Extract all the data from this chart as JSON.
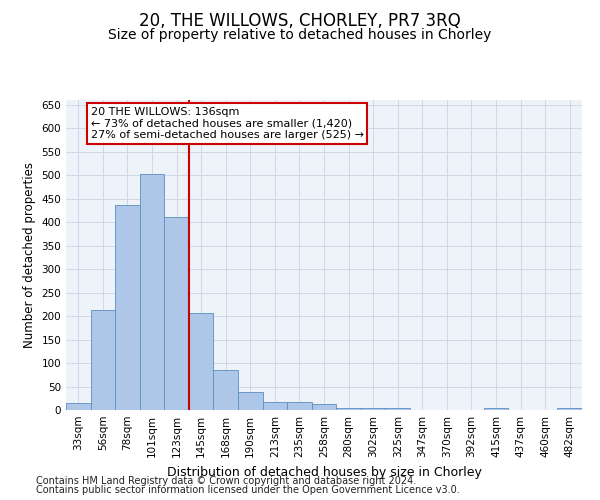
{
  "title1": "20, THE WILLOWS, CHORLEY, PR7 3RQ",
  "title2": "Size of property relative to detached houses in Chorley",
  "xlabel": "Distribution of detached houses by size in Chorley",
  "ylabel": "Number of detached properties",
  "bin_labels": [
    "33sqm",
    "56sqm",
    "78sqm",
    "101sqm",
    "123sqm",
    "145sqm",
    "168sqm",
    "190sqm",
    "213sqm",
    "235sqm",
    "258sqm",
    "280sqm",
    "302sqm",
    "325sqm",
    "347sqm",
    "370sqm",
    "392sqm",
    "415sqm",
    "437sqm",
    "460sqm",
    "482sqm"
  ],
  "bar_values": [
    15,
    212,
    437,
    503,
    410,
    207,
    85,
    38,
    17,
    17,
    12,
    5,
    4,
    4,
    1,
    1,
    1,
    5,
    0,
    0,
    5
  ],
  "bar_color": "#aec6e8",
  "bar_edge_color": "#5a8fc0",
  "grid_color": "#d0d8e8",
  "subject_line_index": 4,
  "subject_line_color": "#cc0000",
  "annotation_line1": "20 THE WILLOWS: 136sqm",
  "annotation_line2": "← 73% of detached houses are smaller (1,420)",
  "annotation_line3": "27% of semi-detached houses are larger (525) →",
  "annotation_box_color": "#ffffff",
  "annotation_box_edge_color": "#cc0000",
  "ylim": [
    0,
    660
  ],
  "yticks": [
    0,
    50,
    100,
    150,
    200,
    250,
    300,
    350,
    400,
    450,
    500,
    550,
    600,
    650
  ],
  "footer_line1": "Contains HM Land Registry data © Crown copyright and database right 2024.",
  "footer_line2": "Contains public sector information licensed under the Open Government Licence v3.0.",
  "title1_fontsize": 12,
  "title2_fontsize": 10,
  "xlabel_fontsize": 9,
  "ylabel_fontsize": 8.5,
  "tick_fontsize": 7.5,
  "annotation_fontsize": 8,
  "footer_fontsize": 7
}
